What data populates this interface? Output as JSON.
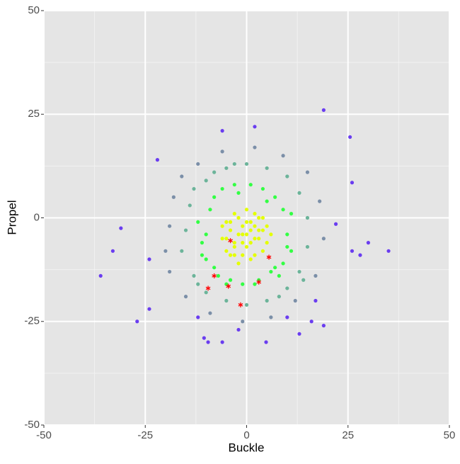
{
  "chart_data": {
    "type": "scatter",
    "x_label": "Buckle",
    "y_label": "Propel",
    "xlim": [
      -50,
      50
    ],
    "ylim": [
      -50,
      50
    ],
    "xticks": [
      -50,
      -25,
      0,
      25,
      50
    ],
    "yticks": [
      -50,
      -25,
      0,
      25,
      50
    ],
    "minor_ticks": [
      -37.5,
      -12.5,
      12.5,
      37.5
    ],
    "grid": true,
    "point_groups": [
      {
        "color": "#7b8fa8",
        "x": [
          -19,
          -18,
          -16,
          -12,
          -6,
          2,
          9,
          15,
          18,
          19,
          17,
          12,
          6,
          -1,
          -9,
          -15,
          -19,
          -20
        ],
        "y": [
          -2,
          5,
          10,
          13,
          16,
          17,
          15,
          11,
          4,
          -5,
          -14,
          -20,
          -24,
          -25,
          -23,
          -19,
          -13,
          -8
        ]
      },
      {
        "color": "#6cb49a",
        "x": [
          -15,
          -14,
          -13,
          -10,
          -5,
          0,
          5,
          10,
          13,
          15,
          15,
          13,
          10,
          5,
          0,
          -5,
          -10,
          -13,
          -16,
          -12,
          8,
          -8,
          14,
          -3
        ],
        "y": [
          -3,
          3,
          7,
          9,
          12,
          13,
          12,
          10,
          6,
          0,
          -7,
          -13,
          -17,
          -20,
          -21,
          -20,
          -18,
          -14,
          -8,
          -16,
          -19,
          11,
          -15,
          13
        ]
      },
      {
        "color": "#33ff44",
        "x": [
          -10,
          -9,
          -11,
          -8,
          -6,
          -3,
          1,
          4,
          7,
          9,
          10,
          11,
          9,
          6,
          3,
          -1,
          -4,
          -8,
          -10,
          -12,
          8,
          -7,
          5,
          -2,
          11,
          -11,
          2,
          7,
          -5,
          10
        ],
        "y": [
          -4,
          2,
          -9,
          5,
          7,
          8,
          8,
          7,
          5,
          2,
          -4,
          -8,
          -11,
          -13,
          -15,
          -16,
          -15,
          -12,
          -10,
          -1,
          -14,
          -14,
          4,
          6,
          1,
          -6,
          -16,
          -12,
          -16,
          -7
        ]
      },
      {
        "color": "#e4ff00",
        "x": [
          -1,
          2,
          -4,
          1,
          -3,
          3,
          0,
          -2,
          4,
          -5,
          -1,
          2,
          -6,
          5,
          0,
          -3,
          3,
          -1,
          1,
          -4,
          4,
          -2,
          -5,
          2,
          0,
          -6,
          5,
          -3,
          1,
          3,
          -2,
          4,
          -1,
          -4,
          2,
          0,
          -3,
          6,
          -5,
          1
        ],
        "y": [
          -4,
          -2,
          -3,
          -6,
          -7,
          -5,
          -1,
          0,
          -3,
          -5,
          -9,
          -9,
          -2,
          -6,
          2,
          1,
          0,
          -6,
          -3,
          -9,
          -8,
          -4,
          -8,
          1,
          -7,
          -5,
          -2,
          -6,
          -10,
          -3,
          -11,
          0,
          -2,
          -1,
          -5,
          -4,
          -9,
          -4,
          -1,
          -1
        ]
      },
      {
        "color": "#6a3df0",
        "x": [
          -36,
          -33,
          -31,
          -27,
          -22,
          19,
          25.5,
          35,
          30,
          28,
          26,
          22,
          19,
          13,
          -6,
          -9.5,
          -10.5,
          -6,
          2,
          4.8,
          16,
          -24,
          -24,
          26,
          10,
          -2,
          -12,
          17
        ],
        "y": [
          -14,
          -8,
          -2.5,
          -25,
          14,
          26,
          19.5,
          -8,
          -6,
          -9,
          8.5,
          -1.5,
          -26,
          -28,
          -30,
          -30,
          -29,
          21,
          22,
          -30,
          -25,
          -22,
          -10,
          -8,
          -24,
          -27,
          -24,
          -20
        ]
      }
    ],
    "highlight": {
      "color": "#ff0000",
      "x": [
        -4,
        5.5,
        -8,
        -9.5,
        -4.5,
        3,
        -1.5
      ],
      "y": [
        -5.5,
        -9.5,
        -14,
        -17,
        -16.5,
        -15.5,
        -21
      ]
    }
  }
}
